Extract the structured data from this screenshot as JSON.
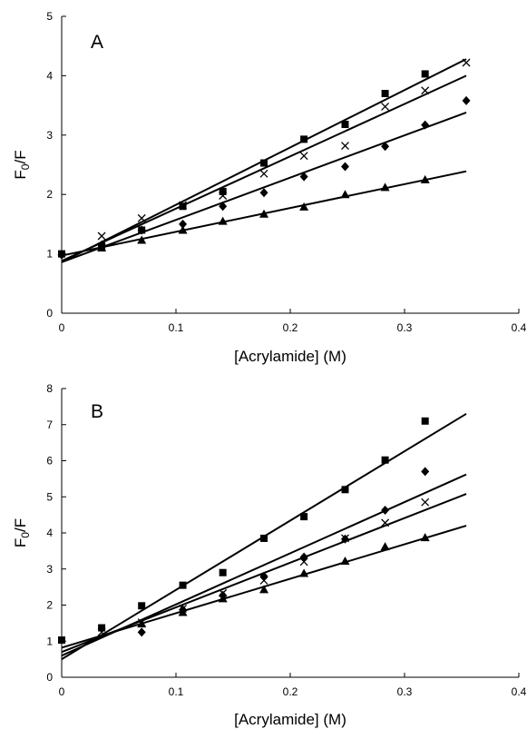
{
  "chart_data": [
    {
      "panel_label": "A",
      "type": "scatter",
      "xlabel": "[Acrylamide] (M)",
      "ylabel": {
        "main": "F",
        "sub": "0",
        "tail": "/F"
      },
      "xlim": [
        0,
        0.4
      ],
      "ylim": [
        0,
        5
      ],
      "xticks": [
        "0",
        "0.1",
        "0.2",
        "0.3",
        "0.4"
      ],
      "yticks": [
        "0",
        "1",
        "2",
        "3",
        "4",
        "5"
      ],
      "grid": false,
      "series": [
        {
          "marker": "square",
          "x": [
            0,
            0.035,
            0.07,
            0.106,
            0.141,
            0.177,
            0.212,
            0.248,
            0.283,
            0.318
          ],
          "y": [
            1.0,
            1.13,
            1.4,
            1.8,
            2.05,
            2.53,
            2.93,
            3.18,
            3.7,
            4.03
          ],
          "fit": [
            [
              0,
              0.86
            ],
            [
              0.354,
              4.28
            ]
          ]
        },
        {
          "marker": "x",
          "x": [
            0.035,
            0.07,
            0.106,
            0.141,
            0.177,
            0.212,
            0.248,
            0.283,
            0.318,
            0.354
          ],
          "y": [
            1.3,
            1.6,
            1.82,
            1.98,
            2.35,
            2.65,
            2.82,
            3.48,
            3.75,
            4.22
          ],
          "fit": [
            [
              0,
              0.88
            ],
            [
              0.354,
              4.0
            ]
          ]
        },
        {
          "marker": "diamond",
          "x": [
            0,
            0.035,
            0.07,
            0.106,
            0.141,
            0.177,
            0.212,
            0.248,
            0.283,
            0.318,
            0.354
          ],
          "y": [
            0.98,
            1.15,
            1.4,
            1.5,
            1.8,
            2.03,
            2.3,
            2.47,
            2.81,
            3.17,
            3.58
          ],
          "fit": [
            [
              0,
              0.86
            ],
            [
              0.354,
              3.38
            ]
          ]
        },
        {
          "marker": "triangle",
          "x": [
            0.035,
            0.07,
            0.106,
            0.141,
            0.177,
            0.212,
            0.248,
            0.283,
            0.318
          ],
          "y": [
            1.1,
            1.23,
            1.4,
            1.55,
            1.67,
            1.79,
            2.0,
            2.12,
            2.25
          ],
          "fit": [
            [
              0,
              0.97
            ],
            [
              0.354,
              2.39
            ]
          ]
        }
      ]
    },
    {
      "panel_label": "B",
      "type": "scatter",
      "xlabel": "[Acrylamide] (M)",
      "ylabel": {
        "main": "F",
        "sub": "0",
        "tail": "/F"
      },
      "xlim": [
        0,
        0.4
      ],
      "ylim": [
        0,
        8
      ],
      "xticks": [
        "0",
        "0.1",
        "0.2",
        "0.3",
        "0.4"
      ],
      "yticks": [
        "0",
        "1",
        "2",
        "3",
        "4",
        "5",
        "6",
        "7",
        "8"
      ],
      "grid": false,
      "series": [
        {
          "marker": "square",
          "x": [
            0,
            0.035,
            0.07,
            0.106,
            0.141,
            0.177,
            0.212,
            0.248,
            0.283,
            0.318
          ],
          "y": [
            1.03,
            1.37,
            1.98,
            2.55,
            2.9,
            3.85,
            4.45,
            5.2,
            6.02,
            7.1
          ],
          "fit": [
            [
              0,
              0.5
            ],
            [
              0.354,
              7.3
            ]
          ]
        },
        {
          "marker": "diamond",
          "x": [
            0.07,
            0.106,
            0.141,
            0.177,
            0.212,
            0.248,
            0.283,
            0.318
          ],
          "y": [
            1.25,
            1.87,
            2.27,
            2.8,
            3.33,
            3.83,
            4.63,
            5.7
          ],
          "fit": [
            [
              0,
              0.6
            ],
            [
              0.354,
              5.62
            ]
          ]
        },
        {
          "marker": "x",
          "x": [
            0.035,
            0.07,
            0.106,
            0.141,
            0.177,
            0.212,
            0.248,
            0.283,
            0.318
          ],
          "y": [
            1.25,
            1.52,
            1.9,
            2.33,
            2.68,
            3.2,
            3.85,
            4.28,
            4.85
          ],
          "fit": [
            [
              0,
              0.7
            ],
            [
              0.354,
              5.08
            ]
          ]
        },
        {
          "marker": "triangle",
          "x": [
            0.07,
            0.106,
            0.141,
            0.177,
            0.212,
            0.248,
            0.283,
            0.318
          ],
          "y": [
            1.48,
            1.8,
            2.18,
            2.43,
            2.88,
            3.22,
            3.62,
            3.87
          ],
          "fit": [
            [
              0,
              0.82
            ],
            [
              0.354,
              4.2
            ]
          ]
        }
      ]
    }
  ]
}
